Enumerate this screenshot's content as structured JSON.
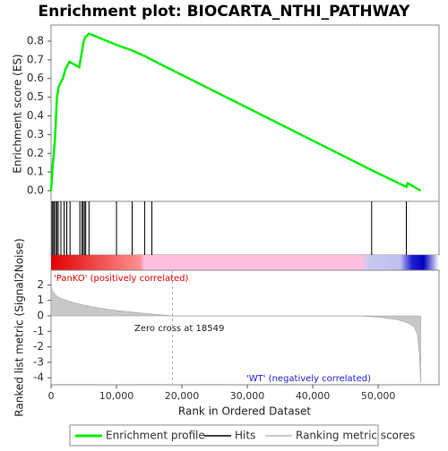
{
  "chart_data": [
    {
      "type": "line",
      "title": "Enrichment plot: BIOCARTA_NTHI_PATHWAY",
      "y_label": "Enrichment score (ES)",
      "xlim": [
        0,
        59300
      ],
      "ylim": [
        -0.057,
        0.886
      ],
      "yticks": [
        {
          "value": 0,
          "label": "0.0"
        },
        {
          "value": 0.1,
          "label": "0.1"
        },
        {
          "value": 0.2,
          "label": "0.2"
        },
        {
          "value": 0.3,
          "label": "0.3"
        },
        {
          "value": 0.4,
          "label": "0.4"
        },
        {
          "value": 0.5,
          "label": "0.5"
        },
        {
          "value": 0.6,
          "label": "0.6"
        },
        {
          "value": 0.7,
          "label": "0.7"
        },
        {
          "value": 0.8,
          "label": "0.8"
        }
      ],
      "series": [
        {
          "name": "Enrichment profile",
          "color": "#00ee00",
          "x": [
            0,
            200,
            400,
            600,
            900,
            1200,
            1800,
            2200,
            2800,
            4300,
            4500,
            4800,
            5000,
            5200,
            5800,
            10000,
            12400,
            14300,
            15400,
            49000,
            54300,
            54500,
            56500
          ],
          "values": [
            0,
            0.11,
            0.19,
            0.28,
            0.5,
            0.56,
            0.6,
            0.65,
            0.69,
            0.66,
            0.7,
            0.76,
            0.8,
            0.82,
            0.84,
            0.78,
            0.75,
            0.72,
            0.7,
            0.11,
            0.02,
            0.04,
            0
          ]
        }
      ]
    },
    {
      "type": "rug",
      "xlim": [
        0,
        59300
      ],
      "series": [
        {
          "name": "Hits",
          "color": "#000000",
          "x": [
            150,
            300,
            500,
            700,
            900,
            1100,
            1500,
            2000,
            2400,
            2900,
            4400,
            4700,
            4900,
            5100,
            5300,
            5800,
            10000,
            12400,
            14300,
            15400,
            49000,
            54300
          ]
        }
      ]
    },
    {
      "type": "area",
      "y_label": "Ranked list metric (Signal2Noise)",
      "x_label": "Rank in Ordered Dataset",
      "xlim": [
        0,
        59300
      ],
      "ylim": [
        -4.45,
        2.95
      ],
      "xticks": [
        0,
        {
          "value": 10000,
          "label": "10,000"
        },
        {
          "value": 20000,
          "label": "20,000"
        },
        {
          "value": 30000,
          "label": "30,000"
        },
        {
          "value": 40000,
          "label": "40,000"
        },
        {
          "value": 50000,
          "label": "50,000"
        }
      ],
      "yticks": [
        2,
        1,
        0,
        -1,
        -2,
        -3,
        -4
      ],
      "zero_cross": 18549,
      "annotations": [
        "'PanKO' (positively correlated)",
        "Zero cross at 18549",
        "'WT' (negatively correlated)"
      ],
      "series": [
        {
          "name": "Ranking metric scores",
          "color": "#c8c8c8",
          "x": [
            0,
            100,
            500,
            1000,
            2000,
            3500,
            5000,
            7500,
            10000,
            14000,
            18549,
            30000,
            47000,
            50000,
            53000,
            54500,
            55500,
            56000,
            56300,
            56500
          ],
          "values": [
            2.5,
            1.7,
            1.45,
            1.25,
            1.05,
            0.85,
            0.7,
            0.5,
            0.35,
            0.18,
            0,
            0,
            0,
            -0.08,
            -0.25,
            -0.45,
            -0.7,
            -1.2,
            -2.5,
            -4.3
          ]
        }
      ]
    }
  ]
}
